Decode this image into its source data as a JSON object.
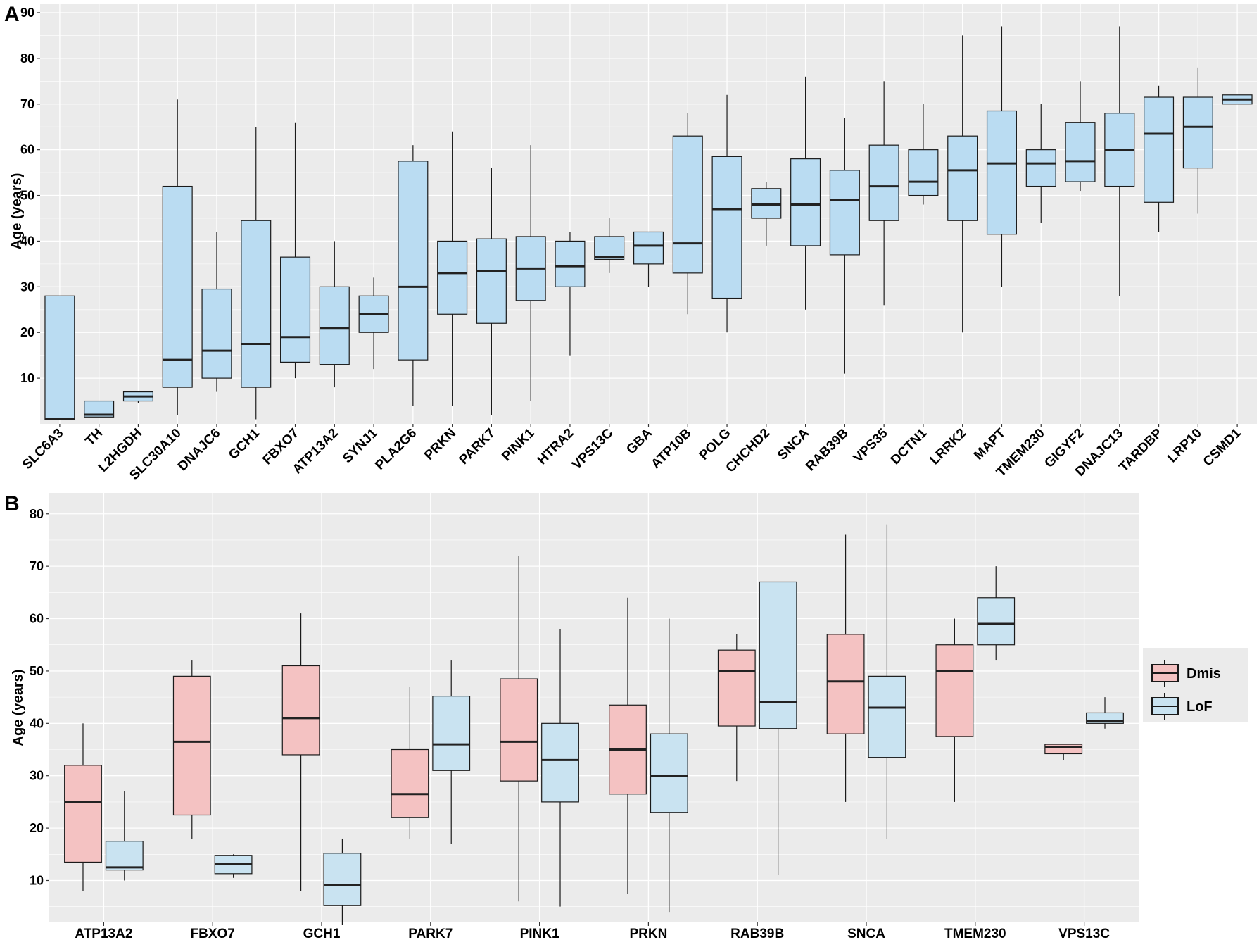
{
  "chart_data": [
    {
      "panel": "A",
      "type": "box",
      "ylabel": "Age (years)",
      "ylim": [
        0,
        92
      ],
      "yticks": [
        10,
        20,
        30,
        40,
        50,
        60,
        70,
        80,
        90
      ],
      "grid": true,
      "fill": "#badcf2",
      "categories": [
        "SLC6A3",
        "TH",
        "L2HGDH",
        "SLC30A10",
        "DNAJC6",
        "GCH1",
        "FBXO7",
        "ATP13A2",
        "SYNJ1",
        "PLA2G6",
        "PRKN",
        "PARK7",
        "PINK1",
        "HTRA2",
        "VPS13C",
        "GBA",
        "ATP10B",
        "POLG",
        "CHCHD2",
        "SNCA",
        "RAB39B",
        "VPS35",
        "DCTN1",
        "LRRK2",
        "MAPT",
        "TMEM230",
        "GIGYF2",
        "DNAJC13",
        "TARDBP",
        "LRP10",
        "CSMD1"
      ],
      "boxes": [
        {
          "min": 1,
          "q1": 1,
          "median": 1,
          "q3": 28,
          "max": 28
        },
        {
          "min": 1.5,
          "q1": 1.5,
          "median": 2,
          "q3": 5,
          "max": 5
        },
        {
          "min": 4.5,
          "q1": 5,
          "median": 6,
          "q3": 7,
          "max": 7
        },
        {
          "min": 2,
          "q1": 8,
          "median": 14,
          "q3": 52,
          "max": 71
        },
        {
          "min": 7,
          "q1": 10,
          "median": 16,
          "q3": 29.5,
          "max": 42
        },
        {
          "min": 1,
          "q1": 8,
          "median": 17.5,
          "q3": 44.5,
          "max": 65
        },
        {
          "min": 10,
          "q1": 13.5,
          "median": 19,
          "q3": 36.5,
          "max": 66
        },
        {
          "min": 8,
          "q1": 13,
          "median": 21,
          "q3": 30,
          "max": 40
        },
        {
          "min": 12,
          "q1": 20,
          "median": 24,
          "q3": 28,
          "max": 32
        },
        {
          "min": 4,
          "q1": 14,
          "median": 30,
          "q3": 57.5,
          "max": 61
        },
        {
          "min": 4,
          "q1": 24,
          "median": 33,
          "q3": 40,
          "max": 64
        },
        {
          "min": 2,
          "q1": 22,
          "median": 33.5,
          "q3": 40.5,
          "max": 56
        },
        {
          "min": 5,
          "q1": 27,
          "median": 34,
          "q3": 41,
          "max": 61
        },
        {
          "min": 15,
          "q1": 30,
          "median": 34.5,
          "q3": 40,
          "max": 42
        },
        {
          "min": 33,
          "q1": 36,
          "median": 36.5,
          "q3": 41,
          "max": 45
        },
        {
          "min": 30,
          "q1": 35,
          "median": 39,
          "q3": 42,
          "max": 42
        },
        {
          "min": 24,
          "q1": 33,
          "median": 39.5,
          "q3": 63,
          "max": 68
        },
        {
          "min": 20,
          "q1": 27.5,
          "median": 47,
          "q3": 58.5,
          "max": 72
        },
        {
          "min": 39,
          "q1": 45,
          "median": 48,
          "q3": 51.5,
          "max": 53
        },
        {
          "min": 25,
          "q1": 39,
          "median": 48,
          "q3": 58,
          "max": 76
        },
        {
          "min": 11,
          "q1": 37,
          "median": 49,
          "q3": 55.5,
          "max": 67
        },
        {
          "min": 26,
          "q1": 44.5,
          "median": 52,
          "q3": 61,
          "max": 75
        },
        {
          "min": 48,
          "q1": 50,
          "median": 53,
          "q3": 60,
          "max": 70
        },
        {
          "min": 20,
          "q1": 44.5,
          "median": 55.5,
          "q3": 63,
          "max": 85
        },
        {
          "min": 30,
          "q1": 41.5,
          "median": 57,
          "q3": 68.5,
          "max": 87
        },
        {
          "min": 44,
          "q1": 52,
          "median": 57,
          "q3": 60,
          "max": 70
        },
        {
          "min": 51,
          "q1": 53,
          "median": 57.5,
          "q3": 66,
          "max": 75
        },
        {
          "min": 28,
          "q1": 52,
          "median": 60,
          "q3": 68,
          "max": 87
        },
        {
          "min": 42,
          "q1": 48.5,
          "median": 63.5,
          "q3": 71.5,
          "max": 74
        },
        {
          "min": 46,
          "q1": 56,
          "median": 65,
          "q3": 71.5,
          "max": 78
        },
        {
          "min": 70,
          "q1": 70,
          "median": 71,
          "q3": 72,
          "max": 72
        }
      ]
    },
    {
      "panel": "B",
      "type": "box",
      "ylabel": "Age (years)",
      "ylim": [
        2,
        84
      ],
      "yticks": [
        10,
        20,
        30,
        40,
        50,
        60,
        70,
        80
      ],
      "grid": true,
      "categories": [
        "ATP13A2",
        "FBXO7",
        "GCH1",
        "PARK7",
        "PINK1",
        "PRKN",
        "RAB39B",
        "SNCA",
        "TMEM230",
        "VPS13C"
      ],
      "series": [
        {
          "name": "Dmis",
          "color": "#f4c2c2",
          "boxes": [
            {
              "min": 8,
              "q1": 13.5,
              "median": 25,
              "q3": 32,
              "max": 40
            },
            {
              "min": 18,
              "q1": 22.5,
              "median": 36.5,
              "q3": 49,
              "max": 52
            },
            {
              "min": 8,
              "q1": 34,
              "median": 41,
              "q3": 51,
              "max": 61
            },
            {
              "min": 18,
              "q1": 22,
              "median": 26.5,
              "q3": 35,
              "max": 47
            },
            {
              "min": 6,
              "q1": 29,
              "median": 36.5,
              "q3": 48.5,
              "max": 72
            },
            {
              "min": 7.5,
              "q1": 26.5,
              "median": 35,
              "q3": 43.5,
              "max": 64
            },
            {
              "min": 29,
              "q1": 39.5,
              "median": 50,
              "q3": 54,
              "max": 57
            },
            {
              "min": 25,
              "q1": 38,
              "median": 48,
              "q3": 57,
              "max": 76
            },
            {
              "min": 25,
              "q1": 37.5,
              "median": 50,
              "q3": 55,
              "max": 60
            },
            {
              "min": 33,
              "q1": 34.2,
              "median": 35.4,
              "q3": 36,
              "max": 36
            }
          ]
        },
        {
          "name": "LoF",
          "color": "#c9e3f1",
          "boxes": [
            {
              "min": 10,
              "q1": 12,
              "median": 12.5,
              "q3": 17.5,
              "max": 27
            },
            {
              "min": 10.5,
              "q1": 11.3,
              "median": 13.2,
              "q3": 14.8,
              "max": 15
            },
            {
              "min": 1.5,
              "q1": 5.2,
              "median": 9.2,
              "q3": 15.2,
              "max": 18
            },
            {
              "min": 17,
              "q1": 31,
              "median": 36,
              "q3": 45.2,
              "max": 52
            },
            {
              "min": 5,
              "q1": 25,
              "median": 33,
              "q3": 40,
              "max": 58
            },
            {
              "min": 4,
              "q1": 23,
              "median": 30,
              "q3": 38,
              "max": 60
            },
            {
              "min": 11,
              "q1": 39,
              "median": 44,
              "q3": 67,
              "max": 67
            },
            {
              "min": 18,
              "q1": 33.5,
              "median": 43,
              "q3": 49,
              "max": 78
            },
            {
              "min": 52,
              "q1": 55,
              "median": 59,
              "q3": 64,
              "max": 70
            },
            {
              "min": 39,
              "q1": 40,
              "median": 40.5,
              "q3": 42,
              "max": 45
            }
          ]
        }
      ]
    }
  ],
  "panels": {
    "a_label": "A",
    "b_label": "B"
  },
  "legend": {
    "dmis": "Dmis",
    "lof": "LoF"
  },
  "colors": {
    "panel_bg": "#ebebeb",
    "grid": "#ffffff",
    "box_stroke": "#1a1a1a",
    "median": "#222222",
    "dmis_fill": "#f4c2c2",
    "lof_fill": "#c9e3f1",
    "panel_a_fill": "#badcf2"
  }
}
